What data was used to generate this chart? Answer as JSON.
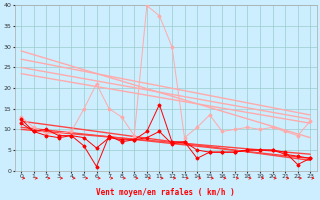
{
  "bg_color": "#cceeff",
  "grid_color": "#99cccc",
  "xlabel": "Vent moyen/en rafales ( km/h )",
  "xlim": [
    -0.5,
    23.5
  ],
  "ylim": [
    0,
    40
  ],
  "yticks": [
    0,
    5,
    10,
    15,
    20,
    25,
    30,
    35,
    40
  ],
  "xticks": [
    0,
    1,
    2,
    3,
    4,
    5,
    6,
    7,
    8,
    9,
    10,
    11,
    12,
    13,
    14,
    15,
    16,
    17,
    18,
    19,
    20,
    21,
    22,
    23
  ],
  "trend_lines": [
    {
      "x0": 0,
      "y0": 29.0,
      "x1": 23,
      "y1": 8.0,
      "color": "#ffaaaa",
      "lw": 1.0
    },
    {
      "x0": 0,
      "y0": 27.0,
      "x1": 23,
      "y1": 13.5,
      "color": "#ffaaaa",
      "lw": 1.0
    },
    {
      "x0": 0,
      "y0": 25.0,
      "x1": 23,
      "y1": 12.5,
      "color": "#ffaaaa",
      "lw": 1.0
    },
    {
      "x0": 0,
      "y0": 23.5,
      "x1": 23,
      "y1": 11.5,
      "color": "#ffaaaa",
      "lw": 1.0
    },
    {
      "x0": 0,
      "y0": 12.0,
      "x1": 23,
      "y1": 2.5,
      "color": "#ff4444",
      "lw": 1.0
    },
    {
      "x0": 0,
      "y0": 10.5,
      "x1": 23,
      "y1": 3.0,
      "color": "#ff4444",
      "lw": 1.0
    },
    {
      "x0": 0,
      "y0": 10.0,
      "x1": 23,
      "y1": 4.0,
      "color": "#ff4444",
      "lw": 1.0
    }
  ],
  "pink_line_x": [
    0,
    1,
    2,
    3,
    4,
    5,
    6,
    7,
    8,
    9,
    10,
    11,
    12,
    13,
    14,
    15,
    16,
    17,
    18,
    19,
    20,
    21,
    22,
    23
  ],
  "pink_line_y": [
    13.0,
    10.5,
    9.0,
    9.0,
    9.5,
    15.0,
    21.0,
    15.0,
    13.0,
    8.5,
    40.0,
    37.5,
    30.0,
    8.0,
    10.5,
    13.5,
    9.5,
    10.0,
    10.5,
    10.0,
    10.5,
    9.5,
    8.5,
    12.0
  ],
  "pink_line_color": "#ffaaaa",
  "red_line1_x": [
    0,
    1,
    2,
    3,
    4,
    5,
    6,
    7,
    8,
    9,
    10,
    11,
    12,
    13,
    14,
    15,
    16,
    17,
    18,
    19,
    20,
    21,
    22,
    23
  ],
  "red_line1_y": [
    12.5,
    9.5,
    8.5,
    8.0,
    8.5,
    6.0,
    1.0,
    8.5,
    7.0,
    7.5,
    9.5,
    16.0,
    7.0,
    7.0,
    3.0,
    4.5,
    4.5,
    4.5,
    5.0,
    5.0,
    5.0,
    4.5,
    1.5,
    3.0
  ],
  "red_line2_x": [
    0,
    1,
    2,
    3,
    4,
    5,
    6,
    7,
    8,
    9,
    10,
    11,
    12,
    13,
    14,
    15,
    16,
    17,
    18,
    19,
    20,
    21,
    22,
    23
  ],
  "red_line2_y": [
    11.5,
    9.5,
    10.0,
    8.5,
    8.5,
    8.0,
    5.5,
    8.0,
    7.5,
    7.5,
    8.0,
    9.5,
    6.5,
    7.0,
    5.0,
    4.5,
    4.5,
    4.5,
    5.0,
    5.0,
    5.0,
    4.0,
    3.5,
    3.0
  ],
  "red_line_color": "#ff0000",
  "marker": "D",
  "markersize": 1.5,
  "line_lw": 0.7
}
